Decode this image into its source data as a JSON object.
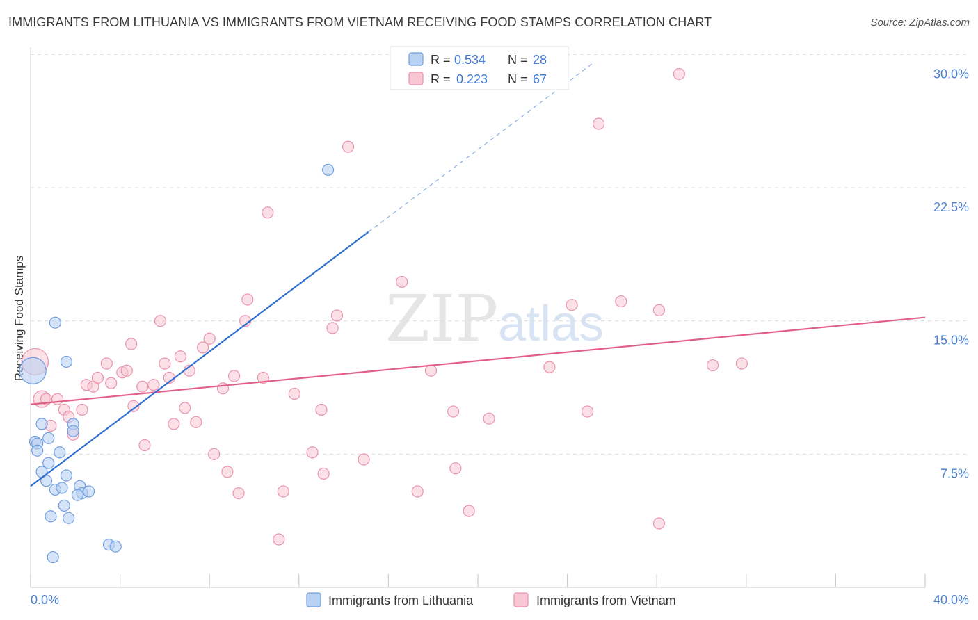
{
  "title": "IMMIGRANTS FROM LITHUANIA VS IMMIGRANTS FROM VIETNAM RECEIVING FOOD STAMPS CORRELATION CHART",
  "source": "Source: ZipAtlas.com",
  "watermark": {
    "zip": "ZIP",
    "atlas": "atlas"
  },
  "colors": {
    "lithuania_fill": "#b9d1f3",
    "lithuania_stroke": "#6f9ee0",
    "lithuania_line": "#2f6fd1",
    "vietnam_fill": "#f8c6d4",
    "vietnam_stroke": "#ea93ad",
    "vietnam_line": "#e0608a",
    "tick_text": "#4a7fcf",
    "grid": "#dcdcdc"
  },
  "legend": {
    "rows": [
      {
        "r_label": "R = ",
        "r_value": "0.534",
        "n_label": "N = ",
        "n_value": "28"
      },
      {
        "r_label": "R = ",
        "r_value": "0.223",
        "n_label": "N = ",
        "n_value": "67"
      }
    ]
  },
  "chart_data": {
    "type": "scatter",
    "title": "IMMIGRANTS FROM LITHUANIA VS IMMIGRANTS FROM VIETNAM RECEIVING FOOD STAMPS CORRELATION CHART",
    "xlabel": "",
    "ylabel": "Receiving Food Stamps",
    "xlim": [
      0,
      40
    ],
    "ylim": [
      0,
      31.5
    ],
    "x_tick_labels": [
      "0.0%",
      "40.0%"
    ],
    "y_ticks": [
      7.5,
      15.0,
      22.5,
      30.0
    ],
    "y_tick_labels": [
      "7.5%",
      "15.0%",
      "22.5%",
      "30.0%"
    ],
    "grid": true,
    "legend_position": "top-center",
    "series": [
      {
        "name": "Immigrants from Lithuania",
        "trend": {
          "x": [
            0,
            15.1
          ],
          "y": [
            5.7,
            20.0
          ],
          "dash_to_x": 25.2
        },
        "points": [
          {
            "x": 0.1,
            "y": 12.2,
            "r": "large"
          },
          {
            "x": 1.1,
            "y": 14.9
          },
          {
            "x": 1.6,
            "y": 12.7
          },
          {
            "x": 0.2,
            "y": 8.2
          },
          {
            "x": 0.3,
            "y": 8.1
          },
          {
            "x": 0.5,
            "y": 9.2
          },
          {
            "x": 0.8,
            "y": 8.4
          },
          {
            "x": 0.3,
            "y": 7.7
          },
          {
            "x": 1.3,
            "y": 7.6
          },
          {
            "x": 1.9,
            "y": 9.2
          },
          {
            "x": 1.9,
            "y": 8.8
          },
          {
            "x": 0.8,
            "y": 7.0
          },
          {
            "x": 0.5,
            "y": 6.5
          },
          {
            "x": 0.7,
            "y": 6.0
          },
          {
            "x": 1.6,
            "y": 6.3
          },
          {
            "x": 1.1,
            "y": 5.5
          },
          {
            "x": 1.4,
            "y": 5.6
          },
          {
            "x": 2.2,
            "y": 5.7
          },
          {
            "x": 2.3,
            "y": 5.3
          },
          {
            "x": 2.6,
            "y": 5.4
          },
          {
            "x": 2.1,
            "y": 5.2
          },
          {
            "x": 1.5,
            "y": 4.6
          },
          {
            "x": 0.9,
            "y": 4.0
          },
          {
            "x": 1.7,
            "y": 3.9
          },
          {
            "x": 3.5,
            "y": 2.4
          },
          {
            "x": 3.8,
            "y": 2.3
          },
          {
            "x": 1.0,
            "y": 1.7
          },
          {
            "x": 13.3,
            "y": 23.5
          }
        ]
      },
      {
        "name": "Immigrants from Vietnam",
        "trend": {
          "x": [
            0,
            40
          ],
          "y": [
            10.3,
            15.2
          ]
        },
        "points": [
          {
            "x": 0.2,
            "y": 12.7,
            "r": "large"
          },
          {
            "x": 0.5,
            "y": 10.6,
            "r": "medium"
          },
          {
            "x": 0.7,
            "y": 10.6
          },
          {
            "x": 0.9,
            "y": 9.1
          },
          {
            "x": 1.2,
            "y": 10.6
          },
          {
            "x": 1.5,
            "y": 10.0
          },
          {
            "x": 1.7,
            "y": 9.6
          },
          {
            "x": 1.9,
            "y": 8.6
          },
          {
            "x": 2.3,
            "y": 10.0
          },
          {
            "x": 2.5,
            "y": 11.4
          },
          {
            "x": 2.8,
            "y": 11.3
          },
          {
            "x": 3.0,
            "y": 11.8
          },
          {
            "x": 3.4,
            "y": 12.6
          },
          {
            "x": 3.6,
            "y": 11.5
          },
          {
            "x": 4.1,
            "y": 12.1
          },
          {
            "x": 4.3,
            "y": 12.2
          },
          {
            "x": 4.5,
            "y": 13.7
          },
          {
            "x": 4.6,
            "y": 10.2
          },
          {
            "x": 5.0,
            "y": 11.3
          },
          {
            "x": 5.1,
            "y": 8.0
          },
          {
            "x": 5.5,
            "y": 11.4
          },
          {
            "x": 5.8,
            "y": 15.0
          },
          {
            "x": 6.0,
            "y": 12.6
          },
          {
            "x": 6.2,
            "y": 11.8
          },
          {
            "x": 6.4,
            "y": 9.2
          },
          {
            "x": 6.7,
            "y": 13.0
          },
          {
            "x": 6.9,
            "y": 10.1
          },
          {
            "x": 7.1,
            "y": 12.2
          },
          {
            "x": 7.4,
            "y": 9.3
          },
          {
            "x": 7.7,
            "y": 13.5
          },
          {
            "x": 8.0,
            "y": 14.0
          },
          {
            "x": 8.2,
            "y": 7.5
          },
          {
            "x": 8.6,
            "y": 11.2
          },
          {
            "x": 8.8,
            "y": 6.5
          },
          {
            "x": 9.1,
            "y": 11.9
          },
          {
            "x": 9.3,
            "y": 5.3
          },
          {
            "x": 9.6,
            "y": 15.0
          },
          {
            "x": 9.7,
            "y": 16.2
          },
          {
            "x": 10.4,
            "y": 11.8
          },
          {
            "x": 10.6,
            "y": 21.1
          },
          {
            "x": 11.1,
            "y": 2.7
          },
          {
            "x": 11.3,
            "y": 5.4
          },
          {
            "x": 11.8,
            "y": 10.9
          },
          {
            "x": 12.6,
            "y": 7.6
          },
          {
            "x": 13.0,
            "y": 10.0
          },
          {
            "x": 13.1,
            "y": 6.4
          },
          {
            "x": 13.5,
            "y": 14.6
          },
          {
            "x": 13.7,
            "y": 15.3
          },
          {
            "x": 14.2,
            "y": 24.8
          },
          {
            "x": 14.9,
            "y": 7.2
          },
          {
            "x": 16.6,
            "y": 17.2
          },
          {
            "x": 17.9,
            "y": 12.2
          },
          {
            "x": 17.3,
            "y": 5.4
          },
          {
            "x": 18.9,
            "y": 9.9
          },
          {
            "x": 19.0,
            "y": 6.7
          },
          {
            "x": 19.6,
            "y": 4.3
          },
          {
            "x": 20.5,
            "y": 9.5
          },
          {
            "x": 23.2,
            "y": 12.4
          },
          {
            "x": 24.2,
            "y": 15.9
          },
          {
            "x": 24.9,
            "y": 9.9
          },
          {
            "x": 25.4,
            "y": 26.1
          },
          {
            "x": 26.4,
            "y": 16.1
          },
          {
            "x": 28.1,
            "y": 15.6
          },
          {
            "x": 28.1,
            "y": 3.6
          },
          {
            "x": 29.0,
            "y": 28.9
          },
          {
            "x": 30.5,
            "y": 12.5
          },
          {
            "x": 31.8,
            "y": 12.6
          }
        ]
      }
    ]
  }
}
